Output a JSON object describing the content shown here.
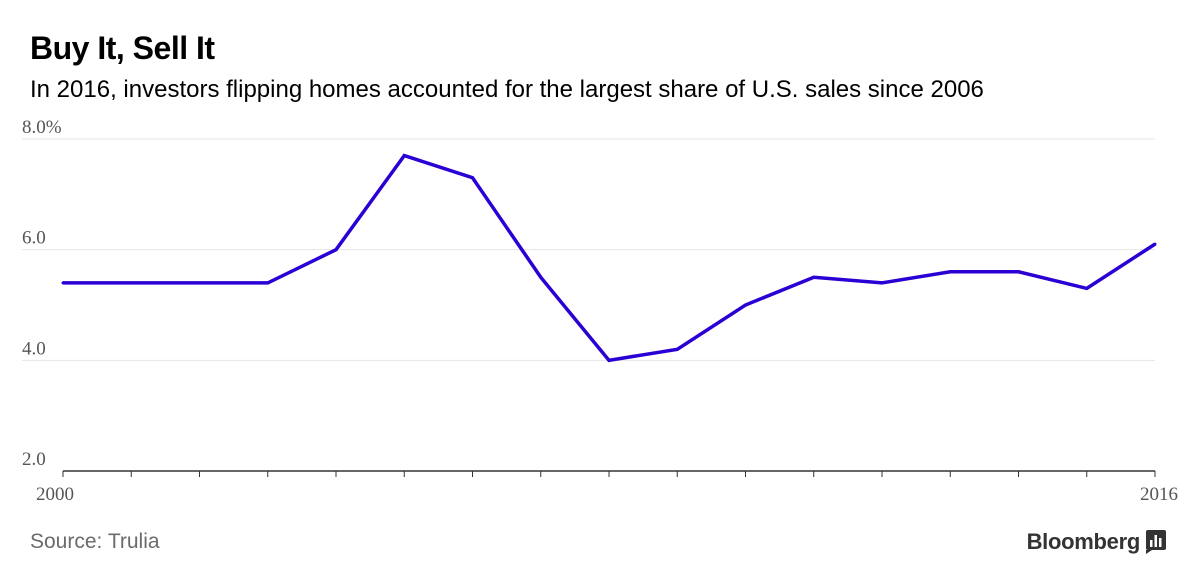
{
  "title": "Buy It, Sell It",
  "subtitle": "In 2016, investors flipping homes accounted for the largest share of U.S. sales since 2006",
  "source": "Source: Trulia",
  "brand": "Bloomberg",
  "colors": {
    "line": "#2a00d4",
    "grid": "#e6e6e6",
    "axis": "#333333",
    "tick_text": "#555555"
  },
  "chart_data": {
    "type": "line",
    "title": "Buy It, Sell It",
    "subtitle": "In 2016, investors flipping homes accounted for the largest share of U.S. sales since 2006",
    "xlabel": "",
    "ylabel": "",
    "x": [
      2000,
      2001,
      2002,
      2003,
      2004,
      2005,
      2006,
      2007,
      2008,
      2009,
      2010,
      2011,
      2012,
      2013,
      2014,
      2015,
      2016
    ],
    "series": [
      {
        "values": [
          5.4,
          5.4,
          5.4,
          5.4,
          6.0,
          7.7,
          7.3,
          5.5,
          4.0,
          4.2,
          5.0,
          5.5,
          5.4,
          5.6,
          5.6,
          5.3,
          6.1
        ]
      }
    ],
    "xlim": [
      2000,
      2016
    ],
    "ylim": [
      2.0,
      8.0
    ],
    "yticks": [
      2.0,
      4.0,
      6.0,
      8.0
    ],
    "ytick_labels": [
      "2.0",
      "4.0",
      "6.0",
      "8.0%"
    ],
    "xtick_labels": [
      "2000",
      "2016"
    ],
    "xticks": [
      2000,
      2016
    ],
    "grid": true,
    "legend": "none"
  }
}
